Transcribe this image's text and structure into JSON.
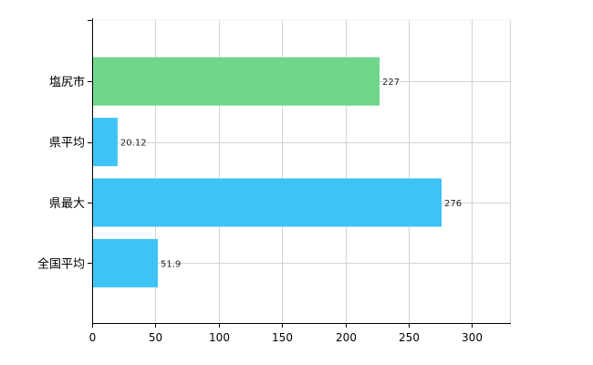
{
  "chart_data": {
    "type": "bar",
    "orientation": "horizontal",
    "categories": [
      "塩尻市",
      "県平均",
      "県最大",
      "全国平均"
    ],
    "values": [
      227,
      20.12,
      276,
      51.9
    ],
    "value_labels": [
      "227",
      "20.12",
      "276",
      "51.9"
    ],
    "bar_colors": [
      "#6fd68a",
      "#3ec3f6",
      "#3ec3f6",
      "#3ec3f6"
    ],
    "xlim": [
      0,
      330
    ],
    "xticks": [
      0,
      50,
      100,
      150,
      200,
      250,
      300
    ],
    "x_tick_labels": [
      "0",
      "50",
      "100",
      "150",
      "200",
      "250",
      "300"
    ],
    "grid": true,
    "legend": "none",
    "title": "",
    "xlabel": "",
    "ylabel": ""
  }
}
